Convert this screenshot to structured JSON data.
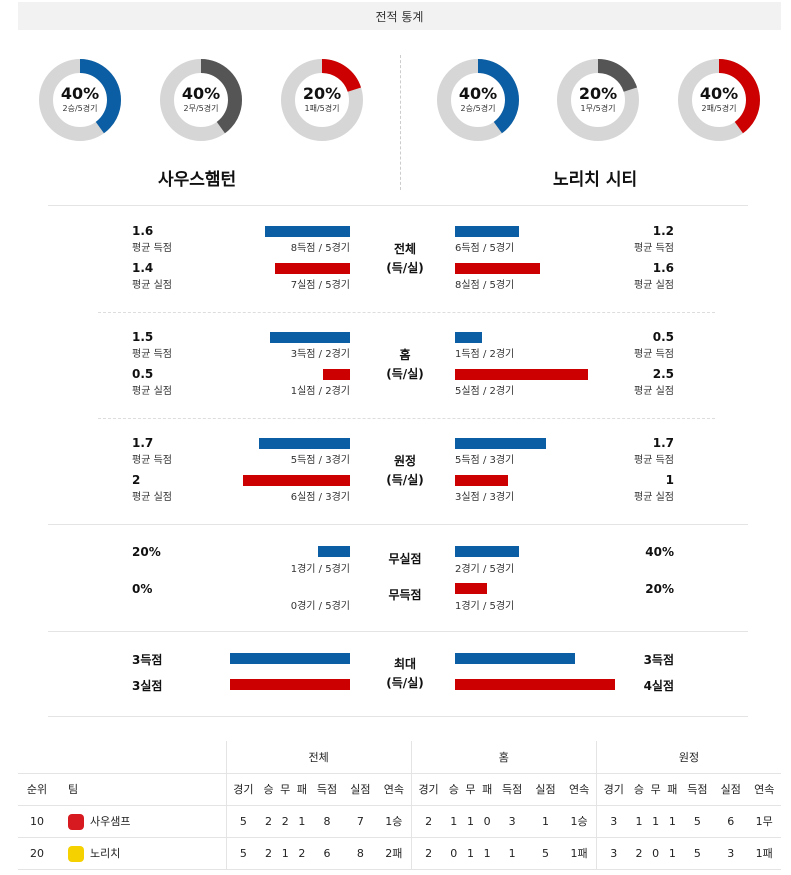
{
  "title": "전적 통계",
  "home": {
    "name": "사우스햄턴",
    "donuts": [
      {
        "pct": "40%",
        "sub": "2승/5경기",
        "fraction": 0.4,
        "color": "#0b5ea3"
      },
      {
        "pct": "40%",
        "sub": "2무/5경기",
        "fraction": 0.4,
        "color": "#555555"
      },
      {
        "pct": "20%",
        "sub": "1패/5경기",
        "fraction": 0.2,
        "color": "#cc0000"
      }
    ]
  },
  "away": {
    "name": "노리치 시티",
    "donuts": [
      {
        "pct": "40%",
        "sub": "2승/5경기",
        "fraction": 0.4,
        "color": "#0b5ea3"
      },
      {
        "pct": "20%",
        "sub": "1무/5경기",
        "fraction": 0.2,
        "color": "#555555"
      },
      {
        "pct": "40%",
        "sub": "2패/5경기",
        "fraction": 0.4,
        "color": "#cc0000"
      }
    ]
  },
  "sections": [
    {
      "cat1": "전체",
      "cat2": "(득/실)",
      "home": {
        "v1": "1.6",
        "l1": "평균 득점",
        "c1": "8득점 / 5경기",
        "f1": 0.53,
        "v2": "1.4",
        "l2": "평균 실점",
        "c2": "7실점 / 5경기",
        "f2": 0.47
      },
      "away": {
        "v1": "1.2",
        "l1": "평균 득점",
        "c1": "6득점 / 5경기",
        "f1": 0.4,
        "v2": "1.6",
        "l2": "평균 실점",
        "c2": "8실점 / 5경기",
        "f2": 0.53
      }
    },
    {
      "cat1": "홈",
      "cat2": "(득/실)",
      "home": {
        "v1": "1.5",
        "l1": "평균 득점",
        "c1": "3득점 / 2경기",
        "f1": 0.5,
        "v2": "0.5",
        "l2": "평균 실점",
        "c2": "1실점 / 2경기",
        "f2": 0.17
      },
      "away": {
        "v1": "0.5",
        "l1": "평균 득점",
        "c1": "1득점 / 2경기",
        "f1": 0.17,
        "v2": "2.5",
        "l2": "평균 실점",
        "c2": "5실점 / 2경기",
        "f2": 0.83
      }
    },
    {
      "cat1": "원정",
      "cat2": "(득/실)",
      "home": {
        "v1": "1.7",
        "l1": "평균 득점",
        "c1": "5득점 / 3경기",
        "f1": 0.57,
        "v2": "2",
        "l2": "평균 실점",
        "c2": "6실점 / 3경기",
        "f2": 0.67
      },
      "away": {
        "v1": "1.7",
        "l1": "평균 득점",
        "c1": "5득점 / 3경기",
        "f1": 0.57,
        "v2": "1",
        "l2": "평균 실점",
        "c2": "3실점 / 3경기",
        "f2": 0.33
      }
    }
  ],
  "clean": {
    "cat_a": "무실점",
    "cat_b": "무득점",
    "home": {
      "v1": "20%",
      "c1": "1경기 / 5경기",
      "f1": 0.2,
      "v2": "0%",
      "c2": "0경기 / 5경기",
      "f2": 0.0
    },
    "away": {
      "v1": "40%",
      "c1": "2경기 / 5경기",
      "f1": 0.4,
      "v2": "20%",
      "c2": "1경기 / 5경기",
      "f2": 0.2
    }
  },
  "max": {
    "cat1": "최대",
    "cat2": "(득/실)",
    "home": {
      "v1": "3득점",
      "f1": 0.75,
      "v2": "3실점",
      "f2": 0.75
    },
    "away": {
      "v1": "3득점",
      "f1": 0.75,
      "v2": "4실점",
      "f2": 1.0
    }
  },
  "table": {
    "groups": [
      "전체",
      "홈",
      "원정"
    ],
    "rank_label": "순위",
    "team_label": "팀",
    "cols": [
      "경기",
      "승",
      "무",
      "패",
      "득점",
      "실점",
      "연속"
    ],
    "rows": [
      {
        "rank": "10",
        "team": "사우샘프",
        "crest_color": "#d71920",
        "all": [
          "5",
          "2",
          "2",
          "1",
          "8",
          "7",
          "1승"
        ],
        "home": [
          "2",
          "1",
          "1",
          "0",
          "3",
          "1",
          "1승"
        ],
        "away": [
          "3",
          "1",
          "1",
          "1",
          "5",
          "6",
          "1무"
        ]
      },
      {
        "rank": "20",
        "team": "노리치",
        "crest_color": "#f5d100",
        "all": [
          "5",
          "2",
          "1",
          "2",
          "6",
          "8",
          "2패"
        ],
        "home": [
          "2",
          "0",
          "1",
          "1",
          "1",
          "5",
          "1패"
        ],
        "away": [
          "3",
          "2",
          "0",
          "1",
          "5",
          "3",
          "1패"
        ]
      }
    ]
  }
}
